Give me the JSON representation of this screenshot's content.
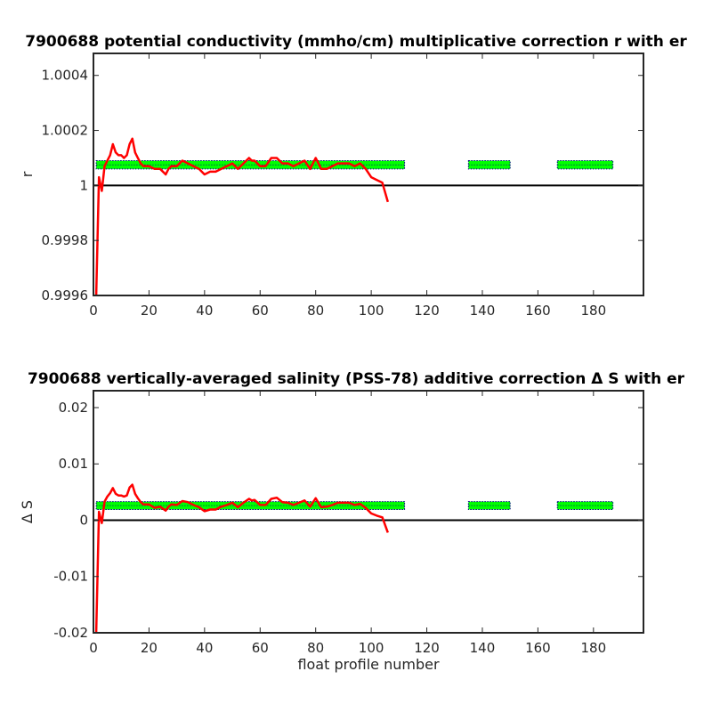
{
  "chart_data": [
    {
      "type": "line",
      "title": "7900688 potential conductivity (mmho/cm) multiplicative correction r with er",
      "xlabel": "",
      "ylabel": "r",
      "xlim": [
        0,
        198
      ],
      "ylim": [
        0.9996,
        1.00048
      ],
      "xticks": [
        0,
        20,
        40,
        60,
        80,
        100,
        120,
        140,
        160,
        180
      ],
      "yticks": [
        0.9996,
        0.9998,
        1,
        1.0002,
        1.0004
      ],
      "ytick_labels": [
        "0.9996",
        "0.9998",
        "1",
        "1.0002",
        "1.0004"
      ],
      "reference_line": {
        "y": 1,
        "color": "#000000"
      },
      "series": [
        {
          "color": "#ff0000",
          "x": [
            1,
            2,
            3,
            4,
            5,
            6,
            7,
            8,
            9,
            10,
            11,
            12,
            13,
            14,
            15,
            16,
            17,
            18,
            19,
            20,
            22,
            24,
            26,
            27,
            28,
            30,
            32,
            34,
            36,
            38,
            40,
            42,
            44,
            46,
            48,
            50,
            52,
            54,
            56,
            57,
            58,
            60,
            62,
            64,
            66,
            68,
            70,
            72,
            74,
            76,
            78,
            80,
            81,
            82,
            84,
            86,
            88,
            90,
            92,
            94,
            96,
            98,
            100,
            102,
            104,
            106
          ],
          "y": [
            0.9996,
            1.00003,
            0.99998,
            1.00007,
            1.00009,
            1.00011,
            1.00015,
            1.00012,
            1.00011,
            1.00011,
            1.0001,
            1.00011,
            1.00015,
            1.00017,
            1.00012,
            1.0001,
            1.00008,
            1.00007,
            1.00007,
            1.00007,
            1.00006,
            1.00006,
            1.00004,
            1.00006,
            1.00007,
            1.00007,
            1.00009,
            1.00008,
            1.00007,
            1.00006,
            1.00004,
            1.00005,
            1.00005,
            1.00006,
            1.00007,
            1.00008,
            1.00006,
            1.00008,
            1.0001,
            1.00009,
            1.00009,
            1.00007,
            1.00007,
            1.0001,
            1.0001,
            1.00008,
            1.00008,
            1.00007,
            1.00008,
            1.00009,
            1.00006,
            1.0001,
            1.00008,
            1.00006,
            1.00006,
            1.00007,
            1.00008,
            1.00008,
            1.00008,
            1.00007,
            1.00008,
            1.00006,
            1.00003,
            1.00002,
            1.00001,
            0.99994
          ]
        }
      ],
      "error_band": {
        "color": "#00ff00",
        "outline": "#000080",
        "segments": [
          {
            "x": [
              1,
              112
            ],
            "y": [
              1.00006,
              1.00009
            ]
          },
          {
            "x": [
              135,
              150
            ],
            "y": [
              1.00006,
              1.00009
            ]
          },
          {
            "x": [
              167,
              187
            ],
            "y": [
              1.00006,
              1.00009
            ]
          }
        ]
      },
      "grid": false
    },
    {
      "type": "line",
      "title": "7900688 vertically-averaged salinity (PSS-78) additive correction Δ S with er",
      "xlabel": "float profile number",
      "ylabel": "Δ S",
      "xlim": [
        0,
        198
      ],
      "ylim": [
        -0.02,
        0.023
      ],
      "xticks": [
        0,
        20,
        40,
        60,
        80,
        100,
        120,
        140,
        160,
        180
      ],
      "yticks": [
        -0.02,
        -0.01,
        0,
        0.01,
        0.02
      ],
      "ytick_labels": [
        "-0.02",
        "-0.01",
        "0",
        "0.01",
        "0.02"
      ],
      "reference_line": {
        "y": 0,
        "color": "#000000"
      },
      "series": [
        {
          "color": "#ff0000",
          "x": [
            1,
            2,
            3,
            4,
            5,
            6,
            7,
            8,
            9,
            10,
            11,
            12,
            13,
            14,
            15,
            16,
            17,
            18,
            19,
            20,
            22,
            24,
            26,
            27,
            28,
            30,
            32,
            34,
            36,
            38,
            40,
            42,
            44,
            46,
            48,
            50,
            52,
            54,
            56,
            57,
            58,
            60,
            62,
            64,
            66,
            68,
            70,
            72,
            74,
            76,
            78,
            80,
            81,
            82,
            84,
            86,
            88,
            90,
            92,
            94,
            96,
            98,
            100,
            102,
            104,
            106
          ],
          "y": [
            -0.02,
            0.0015,
            -0.0005,
            0.0033,
            0.0042,
            0.0048,
            0.0057,
            0.0047,
            0.0044,
            0.0044,
            0.0042,
            0.0044,
            0.0058,
            0.0063,
            0.0047,
            0.0039,
            0.0032,
            0.0028,
            0.0028,
            0.0028,
            0.0022,
            0.0024,
            0.0017,
            0.0024,
            0.0028,
            0.0027,
            0.0034,
            0.0032,
            0.0027,
            0.0023,
            0.0016,
            0.0019,
            0.0019,
            0.0024,
            0.0027,
            0.0031,
            0.0023,
            0.0031,
            0.0038,
            0.0035,
            0.0036,
            0.0027,
            0.0027,
            0.0038,
            0.004,
            0.0032,
            0.0031,
            0.0027,
            0.0031,
            0.0035,
            0.0024,
            0.0039,
            0.0031,
            0.0023,
            0.0024,
            0.0027,
            0.0031,
            0.0031,
            0.0031,
            0.0027,
            0.0029,
            0.0022,
            0.0012,
            0.0008,
            0.0005,
            -0.0022
          ]
        }
      ],
      "error_band": {
        "color": "#00ff00",
        "outline": "#000080",
        "segments": [
          {
            "x": [
              1,
              112
            ],
            "y": [
              0.0019,
              0.0033
            ]
          },
          {
            "x": [
              135,
              150
            ],
            "y": [
              0.0019,
              0.0033
            ]
          },
          {
            "x": [
              167,
              187
            ],
            "y": [
              0.0019,
              0.0033
            ]
          }
        ]
      },
      "grid": false
    }
  ]
}
